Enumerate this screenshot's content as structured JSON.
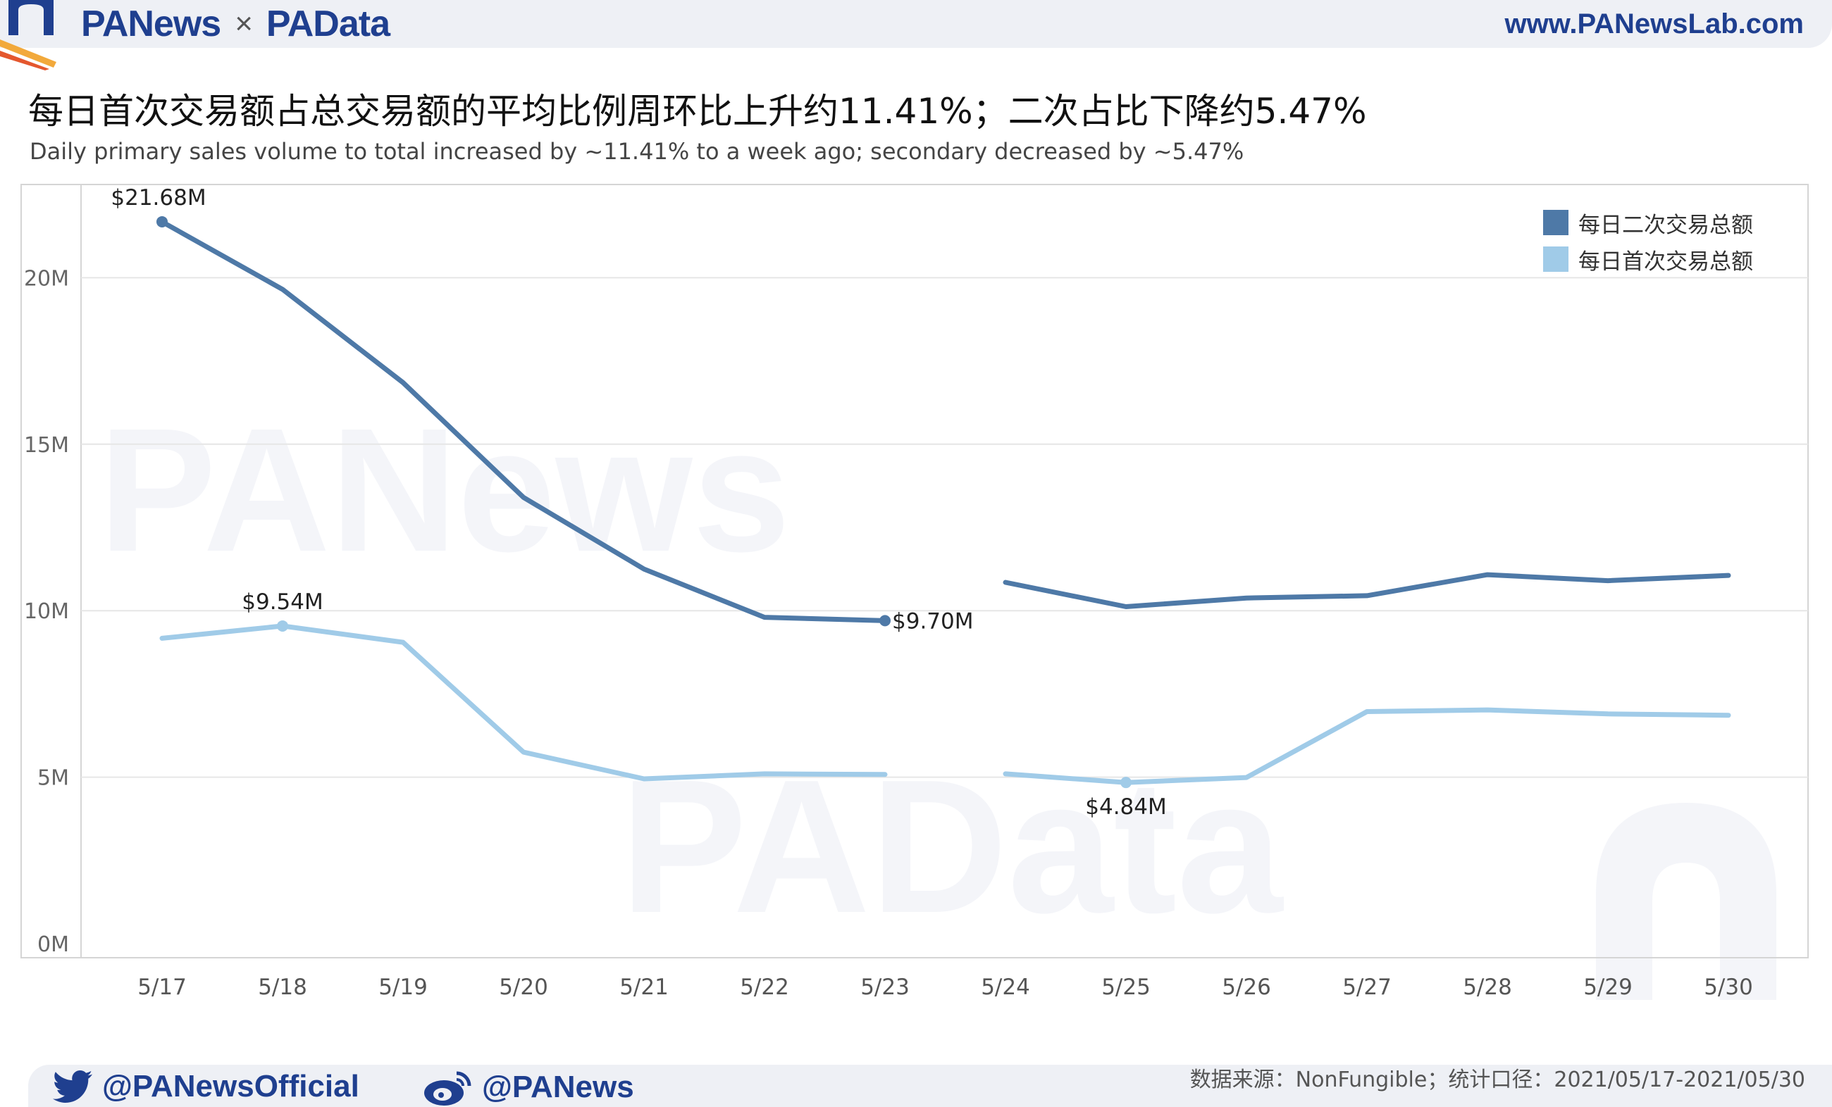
{
  "header": {
    "brand_left": "PANews",
    "brand_separator": "×",
    "brand_right": "PAData",
    "site_url": "www.PANewsLab.com"
  },
  "title": "每日首次交易额占总交易额的平均比例周环比上升约11.41%；二次占比下降约5.47%",
  "subtitle": "Daily primary sales volume to total increased by ~11.41% to a week ago; secondary decreased by ~5.47%",
  "watermarks": [
    "PANews",
    "PAData"
  ],
  "colors": {
    "secondary": "#4e79a7",
    "primary": "#a0cbe8",
    "brand": "#1f3f8f",
    "grid": "#e6e6e6"
  },
  "chart_data": {
    "type": "line",
    "categories": [
      "5/17",
      "5/18",
      "5/19",
      "5/20",
      "5/21",
      "5/22",
      "5/23",
      "5/24",
      "5/25",
      "5/26",
      "5/27",
      "5/28",
      "5/29",
      "5/30"
    ],
    "series": [
      {
        "name": "每日二次交易总额",
        "color": "#4e79a7",
        "values": [
          21.68,
          19.65,
          16.85,
          13.4,
          11.25,
          9.8,
          9.7,
          10.85,
          10.12,
          10.38,
          10.45,
          11.08,
          10.9,
          11.06
        ],
        "gap_after_index": 6
      },
      {
        "name": "每日首次交易总额",
        "color": "#a0cbe8",
        "values": [
          9.17,
          9.54,
          9.05,
          5.75,
          4.95,
          5.1,
          5.08,
          5.1,
          4.84,
          4.99,
          6.97,
          7.02,
          6.9,
          6.86
        ],
        "gap_after_index": 6
      }
    ],
    "annotations": [
      {
        "series": 0,
        "index": 0,
        "label": "$21.68M"
      },
      {
        "series": 0,
        "index": 6,
        "label": "$9.70M"
      },
      {
        "series": 1,
        "index": 1,
        "label": "$9.54M"
      },
      {
        "series": 1,
        "index": 8,
        "label": "$4.84M"
      }
    ],
    "y_ticks": [
      0,
      5,
      10,
      15,
      20
    ],
    "y_tick_labels": [
      "0M",
      "5M",
      "10M",
      "15M",
      "20M"
    ],
    "ylim": [
      0,
      22.8
    ],
    "grid": true,
    "legend_position": "top-right"
  },
  "footer": {
    "twitter": "@PANewsOfficial",
    "weibo": "@PANews",
    "source": "数据来源：NonFungible；统计口径：2021/05/17-2021/05/30"
  }
}
